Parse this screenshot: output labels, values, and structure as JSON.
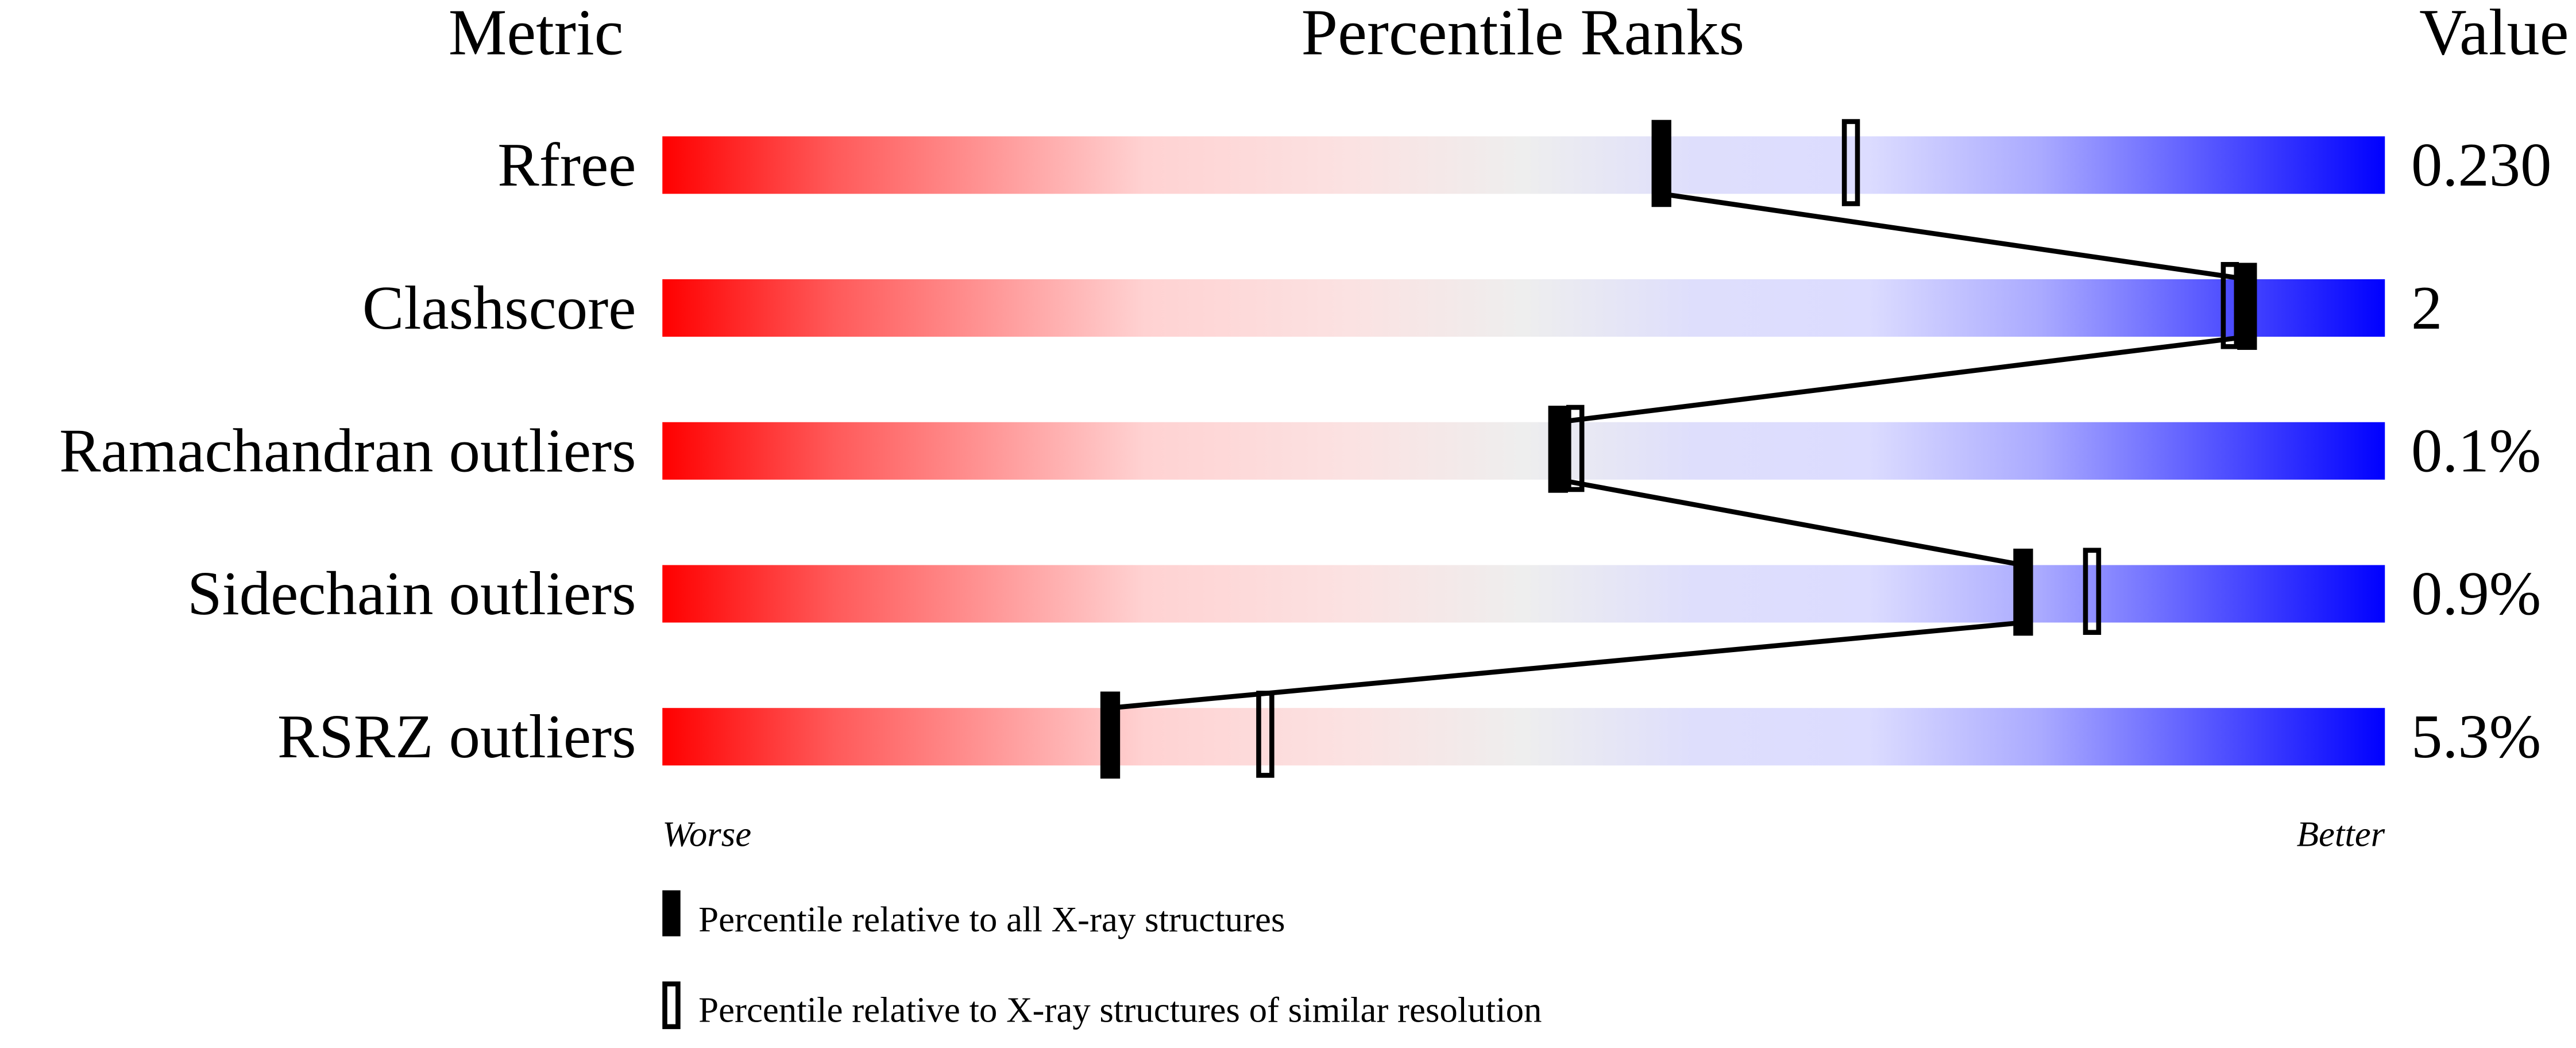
{
  "chart_data": {
    "type": "percentile-slider",
    "headers": {
      "metric": "Metric",
      "ranks": "Percentile Ranks",
      "value": "Value"
    },
    "xlim": [
      0,
      100
    ],
    "rows": [
      {
        "metric": "Rfree",
        "value": "0.230",
        "percentile_all": 58,
        "percentile_similar": 69
      },
      {
        "metric": "Clashscore",
        "value": "2",
        "percentile_all": 92,
        "percentile_similar": 91
      },
      {
        "metric": "Ramachandran outliers",
        "value": "0.1%",
        "percentile_all": 52,
        "percentile_similar": 53
      },
      {
        "metric": "Sidechain outliers",
        "value": "0.9%",
        "percentile_all": 79,
        "percentile_similar": 83
      },
      {
        "metric": "RSRZ outliers",
        "value": "5.3%",
        "percentile_all": 26,
        "percentile_similar": 35
      }
    ],
    "axis_labels": {
      "left": "Worse",
      "right": "Better"
    },
    "legend": [
      {
        "marker": "filled",
        "label": "Percentile relative to all X-ray structures"
      },
      {
        "marker": "open",
        "label": "Percentile relative to X-ray structures of similar resolution"
      }
    ],
    "colors": {
      "worse": "#ff0000",
      "middle": "#eeeeee",
      "better": "#0000ff",
      "marker": "#000000"
    }
  }
}
